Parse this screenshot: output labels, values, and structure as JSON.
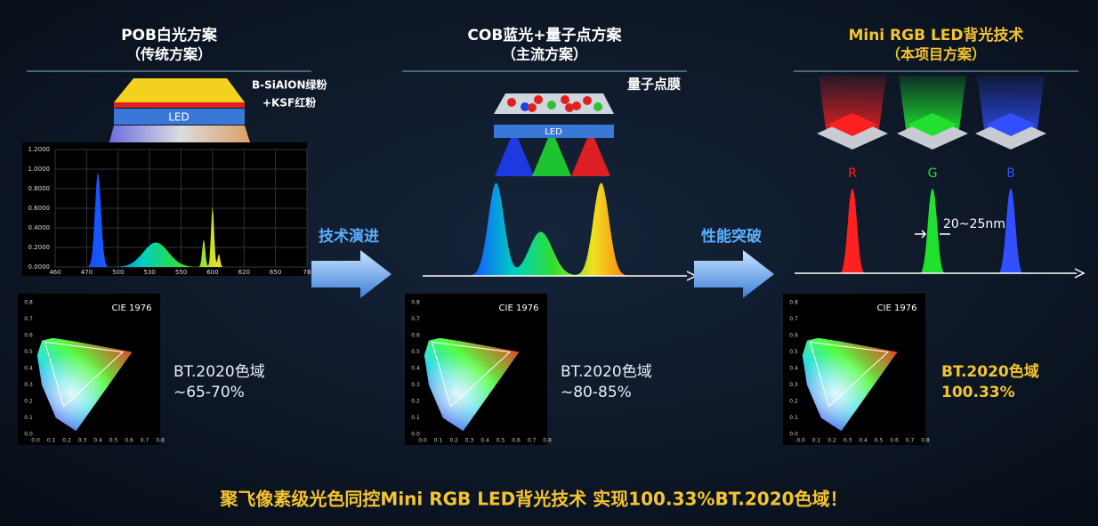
{
  "columns": [
    {
      "title": "POB白光方案",
      "subtitle": "（传统方案）",
      "gamut_label": "BT.2020色域",
      "gamut_value": "~65-70%"
    },
    {
      "title": "COB蓝光+量子点方案",
      "subtitle": "（主流方案）",
      "gamut_label": "BT.2020色域",
      "gamut_value": "~80-85%"
    },
    {
      "title": "Mini RGB LED背光技术",
      "subtitle": "（本项目方案）",
      "gamut_label": "BT.2020色域",
      "gamut_value": "100.33%"
    }
  ],
  "pob": {
    "phosphor_label_1": "B-SiAlON绿粉",
    "phosphor_label_2": "+KSF红粉",
    "led_label": "LED",
    "spectrum_yticks": [
      "1.2000",
      "1.0000",
      "0.8000",
      "0.6000",
      "0.4000",
      "0.2000",
      "0.0000"
    ],
    "spectrum_xticks": [
      "460",
      "470",
      "500",
      "530",
      "550",
      "600",
      "620",
      "650",
      "78"
    ]
  },
  "cob": {
    "film_label": "量子点膜",
    "led_label": "LED"
  },
  "mini_rgb": {
    "channels": [
      "R",
      "G",
      "B"
    ],
    "fwhm_label": "20~25nm"
  },
  "cie": {
    "label": "CIE 1976",
    "ticks": [
      "0.0",
      "0.1",
      "0.2",
      "0.3",
      "0.4",
      "0.5",
      "0.6",
      "0.7",
      "0.8"
    ]
  },
  "arrows": [
    "技术演进",
    "性能突破"
  ],
  "footer": "聚飞像素级光色同控Mini RGB LED背光技术 实现100.33%BT.2020色域！"
}
